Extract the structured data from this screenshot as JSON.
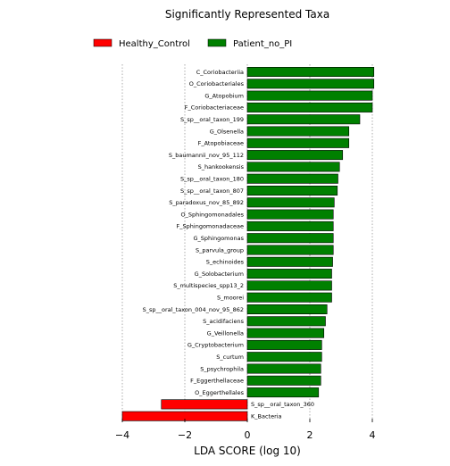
{
  "chart_data": {
    "type": "bar",
    "orientation": "horizontal",
    "title": "Significantly Represented Taxa",
    "xlabel": "LDA SCORE (log 10)",
    "xlim": [
      -4.2,
      4.2
    ],
    "xticks": [
      -4,
      -2,
      0,
      2,
      4
    ],
    "xtick_labels": [
      "−4",
      "−2",
      "0",
      "2",
      "4"
    ],
    "grid": "vertical dotted",
    "legend_position": "top-left",
    "series": [
      {
        "name": "Healthy_Control",
        "color": "#ff0000"
      },
      {
        "name": "Patient_no_PI",
        "color": "#008000"
      }
    ],
    "bars": [
      {
        "label": "C_Coriobacteriia",
        "value": 4.05,
        "group": 1
      },
      {
        "label": "O_Coriobacteriales",
        "value": 4.05,
        "group": 1
      },
      {
        "label": "G_Atopobium",
        "value": 4.0,
        "group": 1
      },
      {
        "label": "F_Coriobacteriaceae",
        "value": 4.0,
        "group": 1
      },
      {
        "label": "S_sp__oral_taxon_199",
        "value": 3.6,
        "group": 1
      },
      {
        "label": "G_Olsenella",
        "value": 3.25,
        "group": 1
      },
      {
        "label": "F_Atopobiaceae",
        "value": 3.25,
        "group": 1
      },
      {
        "label": "S_baumannii_nov_95_112",
        "value": 3.05,
        "group": 1
      },
      {
        "label": "S_hankookensis",
        "value": 2.95,
        "group": 1
      },
      {
        "label": "S_sp__oral_taxon_180",
        "value": 2.9,
        "group": 1
      },
      {
        "label": "S_sp__oral_taxon_807",
        "value": 2.88,
        "group": 1
      },
      {
        "label": "S_paradoxus_nov_85_892",
        "value": 2.78,
        "group": 1
      },
      {
        "label": "O_Sphingomonadales",
        "value": 2.75,
        "group": 1
      },
      {
        "label": "F_Sphingomonadaceae",
        "value": 2.75,
        "group": 1
      },
      {
        "label": "G_Sphingomonas",
        "value": 2.75,
        "group": 1
      },
      {
        "label": "S_parvula_group",
        "value": 2.75,
        "group": 1
      },
      {
        "label": "S_echinoides",
        "value": 2.73,
        "group": 1
      },
      {
        "label": "G_Solobacterium",
        "value": 2.7,
        "group": 1
      },
      {
        "label": "S_multispecies_spp13_2",
        "value": 2.7,
        "group": 1
      },
      {
        "label": "S_moorei",
        "value": 2.7,
        "group": 1
      },
      {
        "label": "S_sp__oral_taxon_004_nov_95_862",
        "value": 2.55,
        "group": 1
      },
      {
        "label": "S_acidifaciens",
        "value": 2.5,
        "group": 1
      },
      {
        "label": "G_Veillonella",
        "value": 2.45,
        "group": 1
      },
      {
        "label": "G_Cryptobacterium",
        "value": 2.38,
        "group": 1
      },
      {
        "label": "S_curtum",
        "value": 2.38,
        "group": 1
      },
      {
        "label": "S_psychrophila",
        "value": 2.35,
        "group": 1
      },
      {
        "label": "F_Eggerthellaceae",
        "value": 2.35,
        "group": 1
      },
      {
        "label": "O_Eggerthellales",
        "value": 2.28,
        "group": 1
      },
      {
        "label": "S_sp__oral_taxon_360",
        "value": -2.75,
        "group": 0
      },
      {
        "label": "K_Bacteria",
        "value": -4.0,
        "group": 0
      }
    ]
  }
}
